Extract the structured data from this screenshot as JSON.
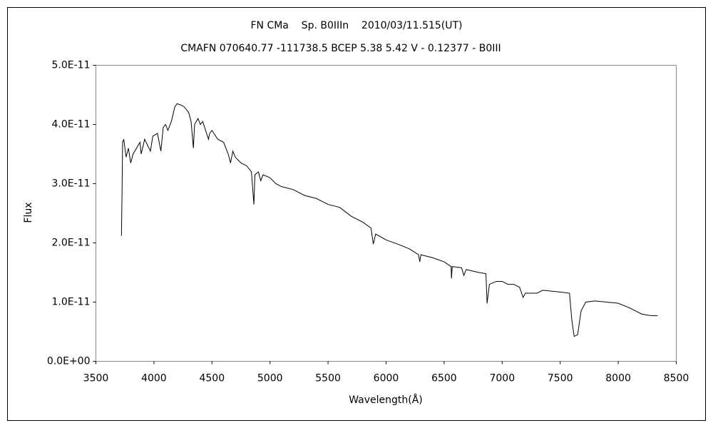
{
  "chart_data": {
    "type": "line",
    "title": "FN CMa    Sp. B0IIIn    2010/03/11.515(UT)",
    "subtitle": "CMAFN 070640.77 -111738.5 BCEP 5.38 5.42 V - 0.12377 - B0III",
    "x_label": "Wavelength(Å)",
    "y_label": "Flux",
    "xlim": [
      3500,
      8500
    ],
    "xticks": [
      3500,
      4000,
      4500,
      5000,
      5500,
      6000,
      6500,
      7000,
      7500,
      8000,
      8500
    ],
    "ylim": [
      0,
      5e-11
    ],
    "yticks": [
      {
        "value": 0,
        "label": "0.0E+00"
      },
      {
        "value": 1e-11,
        "label": "1.0E-11"
      },
      {
        "value": 2e-11,
        "label": "2.0E-11"
      },
      {
        "value": 3e-11,
        "label": "3.0E-11"
      },
      {
        "value": 4e-11,
        "label": "4.0E-11"
      },
      {
        "value": 5e-11,
        "label": "5.0E-11"
      }
    ],
    "grid": false,
    "series": [
      {
        "color": "#000000",
        "x": [
          3720,
          3725,
          3730,
          3740,
          3760,
          3780,
          3800,
          3820,
          3850,
          3880,
          3890,
          3920,
          3970,
          3990,
          4030,
          4060,
          4080,
          4100,
          4120,
          4150,
          4180,
          4200,
          4230,
          4260,
          4300,
          4320,
          4340,
          4350,
          4380,
          4400,
          4420,
          4470,
          4480,
          4500,
          4550,
          4600,
          4640,
          4660,
          4680,
          4700,
          4750,
          4800,
          4840,
          4861,
          4870,
          4900,
          4920,
          4940,
          5000,
          5050,
          5100,
          5200,
          5300,
          5400,
          5500,
          5600,
          5700,
          5800,
          5870,
          5890,
          5910,
          6000,
          6100,
          6200,
          6280,
          6290,
          6300,
          6400,
          6500,
          6560,
          6563,
          6570,
          6650,
          6670,
          6690,
          6800,
          6860,
          6870,
          6890,
          6950,
          7000,
          7050,
          7100,
          7150,
          7180,
          7200,
          7300,
          7350,
          7500,
          7580,
          7600,
          7620,
          7650,
          7680,
          7720,
          7800,
          7900,
          8000,
          8100,
          8150,
          8200,
          8250,
          8300,
          8340
        ],
        "values": [
          2.12e-11,
          2.8e-11,
          3.7e-11,
          3.75e-11,
          3.45e-11,
          3.6e-11,
          3.35e-11,
          3.5e-11,
          3.6e-11,
          3.7e-11,
          3.5e-11,
          3.75e-11,
          3.55e-11,
          3.8e-11,
          3.85e-11,
          3.55e-11,
          3.95e-11,
          4e-11,
          3.9e-11,
          4.05e-11,
          4.3e-11,
          4.35e-11,
          4.33e-11,
          4.3e-11,
          4.2e-11,
          4.05e-11,
          3.6e-11,
          4e-11,
          4.1e-11,
          4e-11,
          4.05e-11,
          3.75e-11,
          3.85e-11,
          3.9e-11,
          3.75e-11,
          3.7e-11,
          3.5e-11,
          3.35e-11,
          3.55e-11,
          3.45e-11,
          3.35e-11,
          3.3e-11,
          3.2e-11,
          2.65e-11,
          3.15e-11,
          3.2e-11,
          3.05e-11,
          3.15e-11,
          3.1e-11,
          3e-11,
          2.95e-11,
          2.9e-11,
          2.8e-11,
          2.75e-11,
          2.65e-11,
          2.6e-11,
          2.45e-11,
          2.35e-11,
          2.25e-11,
          1.98e-11,
          2.15e-11,
          2.05e-11,
          1.98e-11,
          1.9e-11,
          1.8e-11,
          1.68e-11,
          1.8e-11,
          1.75e-11,
          1.68e-11,
          1.6e-11,
          1.4e-11,
          1.6e-11,
          1.58e-11,
          1.45e-11,
          1.55e-11,
          1.5e-11,
          1.48e-11,
          9.8e-12,
          1.3e-11,
          1.35e-11,
          1.35e-11,
          1.3e-11,
          1.3e-11,
          1.25e-11,
          1.08e-11,
          1.15e-11,
          1.15e-11,
          1.2e-11,
          1.17e-11,
          1.15e-11,
          7e-12,
          4.2e-12,
          4.5e-12,
          8.5e-12,
          1e-11,
          1.02e-11,
          1e-11,
          9.8e-12,
          9e-12,
          8.5e-12,
          8e-12,
          7.8e-12,
          7.7e-12,
          7.7e-12
        ]
      }
    ]
  }
}
